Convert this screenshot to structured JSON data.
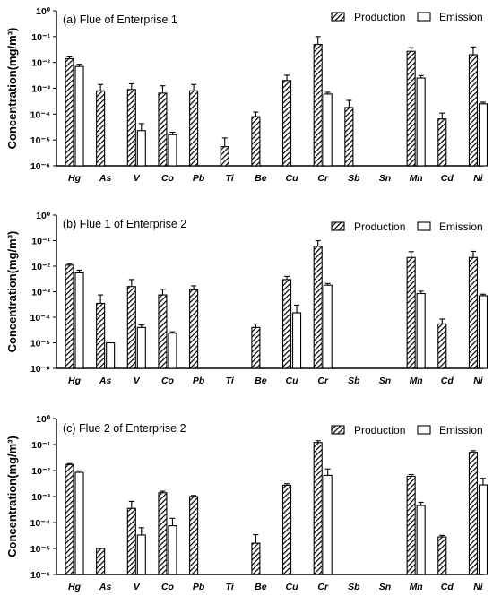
{
  "chart_data": [
    {
      "type": "bar",
      "title": "(a) Flue of Enterprise 1",
      "ylabel": "Concentration(mg/m³)",
      "yscale": "log",
      "ylim": [
        1e-06,
        1
      ],
      "yticks": [
        "10⁻⁶",
        "10⁻⁵",
        "10⁻⁴",
        "10⁻³",
        "10⁻²",
        "10⁻¹",
        "10⁰"
      ],
      "legend_position": "top-right",
      "categories": [
        "Hg",
        "As",
        "V",
        "Co",
        "Pb",
        "Ti",
        "Be",
        "Cu",
        "Cr",
        "Sb",
        "Sn",
        "Mn",
        "Cd",
        "Ni"
      ],
      "series": [
        {
          "name": "Production",
          "values": [
            0.014,
            0.0008,
            0.0009,
            0.00065,
            0.0008,
            5.5e-06,
            8e-05,
            0.002,
            0.05,
            0.00018,
            null,
            0.027,
            6.5e-05,
            0.02
          ],
          "errors": [
            0.0025,
            0.0006,
            0.0006,
            0.0006,
            0.0006,
            6.5e-06,
            4e-05,
            0.0012,
            0.05,
            0.00016,
            null,
            0.01,
            4.5e-05,
            0.02
          ]
        },
        {
          "name": "Emission",
          "values": [
            0.007,
            null,
            2.3e-05,
            1.6e-05,
            null,
            null,
            null,
            null,
            0.0006,
            null,
            null,
            0.0025,
            null,
            0.00025
          ],
          "errors": [
            0.0015,
            null,
            2e-05,
            4e-06,
            null,
            null,
            null,
            null,
            0.0001,
            null,
            null,
            0.0006,
            null,
            4e-05
          ]
        }
      ]
    },
    {
      "type": "bar",
      "title": "(b) Flue 1 of Enterprise 2",
      "ylabel": "Concentration(mg/m³)",
      "yscale": "log",
      "ylim": [
        1e-06,
        1
      ],
      "yticks": [
        "10⁻⁶",
        "10⁻⁵",
        "10⁻⁴",
        "10⁻³",
        "10⁻²",
        "10⁻¹",
        "10⁰"
      ],
      "legend_position": "top-right",
      "categories": [
        "Hg",
        "As",
        "V",
        "Co",
        "Pb",
        "Ti",
        "Be",
        "Cu",
        "Cr",
        "Sb",
        "Sn",
        "Mn",
        "Cd",
        "Ni"
      ],
      "series": [
        {
          "name": "Production",
          "values": [
            0.011,
            0.00035,
            0.0016,
            0.00075,
            0.0012,
            null,
            4e-05,
            0.003,
            0.06,
            null,
            null,
            0.022,
            5.5e-05,
            0.022
          ],
          "errors": [
            0.0015,
            0.0004,
            0.0014,
            0.0005,
            0.0005,
            null,
            1.5e-05,
            0.001,
            0.04,
            null,
            null,
            0.015,
            3e-05,
            0.016
          ]
        },
        {
          "name": "Emission",
          "values": [
            0.0055,
            1e-05,
            4e-05,
            2.4e-05,
            null,
            null,
            null,
            0.00015,
            0.0018,
            null,
            null,
            0.00085,
            null,
            0.0007
          ],
          "errors": [
            0.0015,
            null,
            1e-05,
            3e-06,
            null,
            null,
            null,
            0.00015,
            0.0003,
            null,
            null,
            0.0002,
            null,
            0.0001
          ]
        }
      ]
    },
    {
      "type": "bar",
      "title": "(c) Flue 2 of Enterprise 2",
      "ylabel": "Concentration(mg/m³)",
      "yscale": "log",
      "ylim": [
        1e-06,
        1
      ],
      "yticks": [
        "10⁻⁶",
        "10⁻⁵",
        "10⁻⁴",
        "10⁻³",
        "10⁻²",
        "10⁻¹",
        "10⁰"
      ],
      "legend_position": "top-right",
      "categories": [
        "Hg",
        "As",
        "V",
        "Co",
        "Pb",
        "Ti",
        "Be",
        "Cu",
        "Cr",
        "Sb",
        "Sn",
        "Mn",
        "Cd",
        "Ni"
      ],
      "series": [
        {
          "name": "Production",
          "values": [
            0.017,
            1e-05,
            0.00035,
            0.0014,
            0.001,
            null,
            1.6e-05,
            0.0027,
            0.12,
            null,
            null,
            0.006,
            2.8e-05,
            0.05
          ],
          "errors": [
            0.0015,
            null,
            0.0003,
            0.0002,
            0.0001,
            null,
            1.8e-05,
            0.0004,
            0.02,
            null,
            null,
            0.001,
            4e-06,
            0.008
          ]
        },
        {
          "name": "Emission",
          "values": [
            0.0085,
            null,
            3.3e-05,
            7.5e-05,
            null,
            null,
            null,
            null,
            0.0065,
            null,
            null,
            0.00045,
            null,
            0.0028
          ],
          "errors": [
            0.0012,
            null,
            3e-05,
            7e-05,
            null,
            null,
            null,
            null,
            0.005,
            null,
            null,
            0.00015,
            null,
            0.0022
          ]
        }
      ]
    }
  ]
}
